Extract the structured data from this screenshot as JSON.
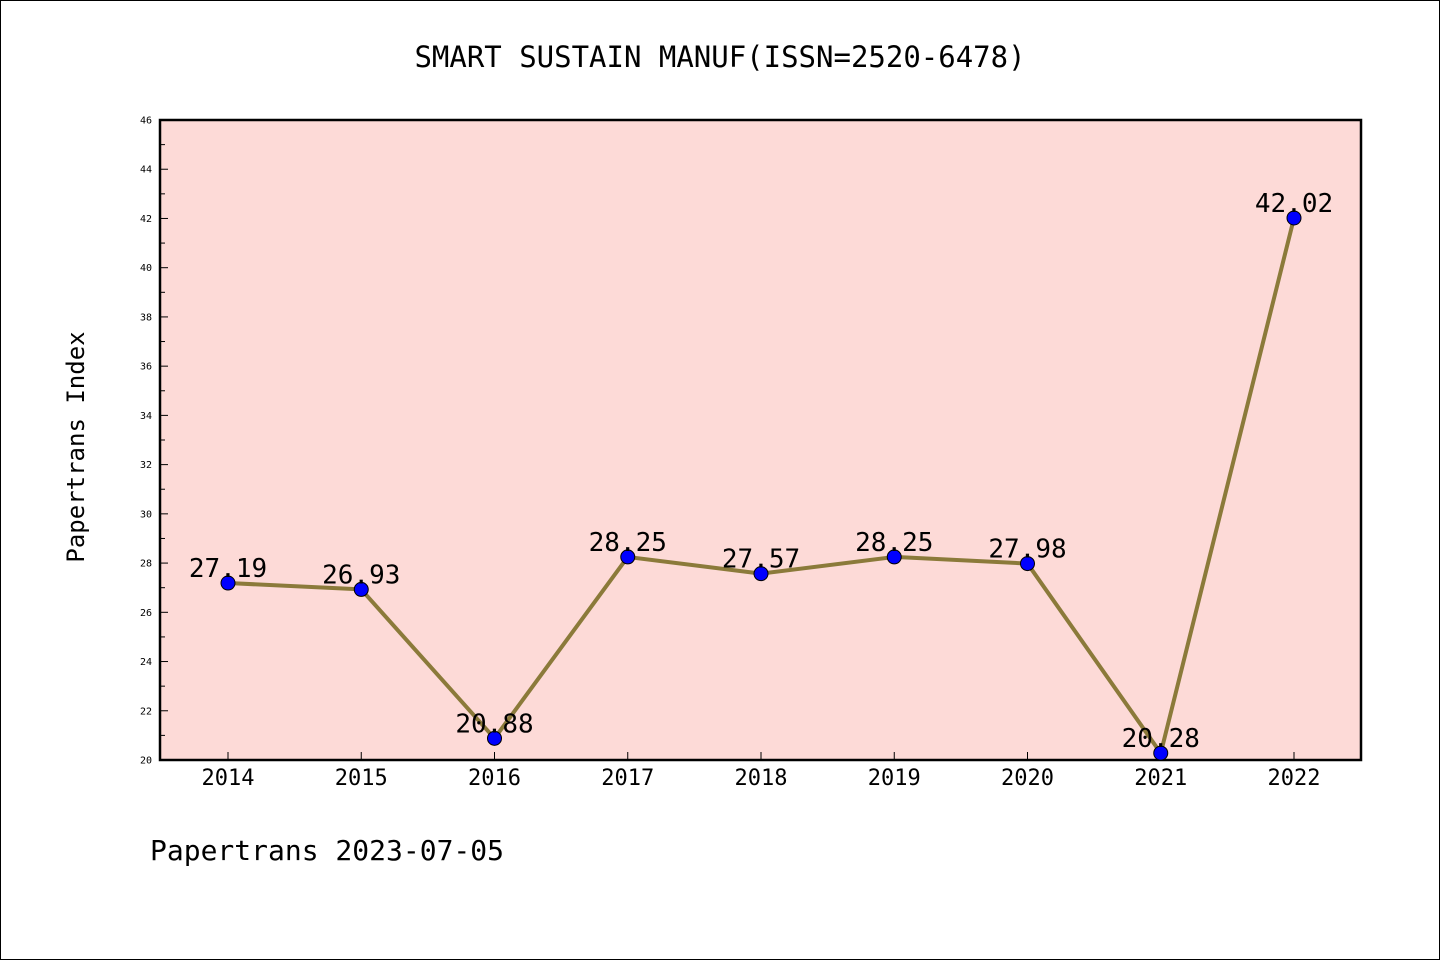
{
  "chart_data": {
    "type": "line",
    "title": "SMART SUSTAIN MANUF(ISSN=2520-6478)",
    "ylabel": "Papertrans Index",
    "xlabel": "",
    "categories": [
      "2014",
      "2015",
      "2016",
      "2017",
      "2018",
      "2019",
      "2020",
      "2021",
      "2022"
    ],
    "series": [
      {
        "values": [
          27.19,
          26.93,
          20.88,
          28.25,
          27.57,
          28.25,
          27.98,
          20.28,
          42.02
        ]
      }
    ],
    "data_labels": [
      "27.19",
      "26.93",
      "20.88",
      "28.25",
      "27.57",
      "28.25",
      "27.98",
      "20.28",
      "42.02"
    ],
    "ylim": [
      20,
      46
    ],
    "yticks": [
      "20",
      "22",
      "24",
      "26",
      "28",
      "30",
      "32",
      "34",
      "36",
      "38",
      "40",
      "42",
      "44",
      "46"
    ],
    "grid": false,
    "legend": "none",
    "colors": {
      "plot_background": "#fddad7",
      "line": "#8b7a3a",
      "marker": "#0000ff"
    }
  },
  "footer": {
    "text": "Papertrans 2023-07-05"
  }
}
